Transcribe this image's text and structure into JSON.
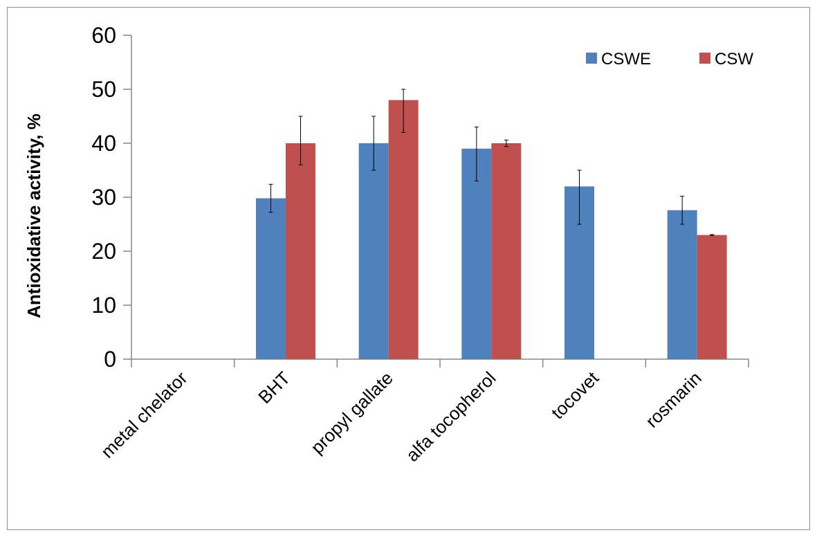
{
  "chart_data": {
    "type": "bar",
    "title": "",
    "xlabel": "",
    "ylabel": "Antioxidative activity, %",
    "ylim": [
      0,
      60
    ],
    "yticks": [
      0,
      10,
      20,
      30,
      40,
      50,
      60
    ],
    "grid": false,
    "legend_position": "top-right",
    "categories": [
      "metal chelator",
      "BHT",
      "propyl gallate",
      "alfa tocopherol",
      "tocovet",
      "rosmarin"
    ],
    "series": [
      {
        "name": "CSWE",
        "color": "#4f81bd",
        "values": [
          null,
          29.8,
          40,
          39,
          32,
          27.6
        ],
        "error_low": [
          null,
          27.2,
          35,
          33,
          25,
          25
        ],
        "error_high": [
          null,
          32.4,
          45,
          43,
          35,
          30.2
        ]
      },
      {
        "name": "CSW",
        "color": "#c0504d",
        "values": [
          null,
          40,
          48,
          40,
          null,
          23
        ],
        "error_low": [
          null,
          36,
          42,
          39.4,
          null,
          22.9
        ],
        "error_high": [
          null,
          45,
          50,
          40.6,
          null,
          23.1
        ]
      }
    ]
  }
}
